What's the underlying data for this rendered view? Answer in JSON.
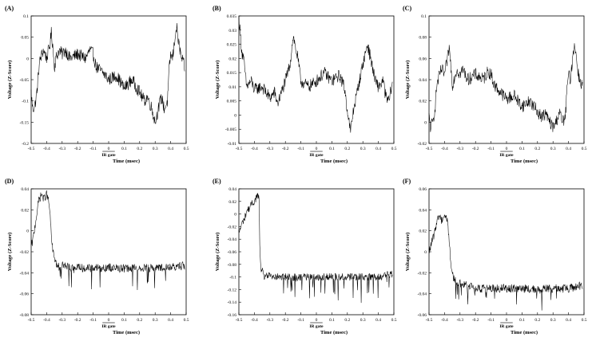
{
  "chart_data": [
    {
      "type": "line",
      "panel_label": "(A)",
      "xlabel": "Time (msec)",
      "ylabel": "Voltage (Z-Score)",
      "gate_label": "IR gate",
      "xlim": [
        -0.5,
        0.5
      ],
      "ylim": [
        -0.2,
        0.1
      ],
      "xticks": [
        "-0.5",
        "-0.4",
        "-0.3",
        "-0.2",
        "-0.1",
        "0",
        "0.1",
        "0.2",
        "0.3",
        "0.4",
        "0.5"
      ],
      "yticks": [
        "0.1",
        "0.05",
        "0",
        "-0.05",
        "-0.1",
        "-0.15",
        "-0.2"
      ],
      "series": [
        {
          "noise": 0.015,
          "x": [
            -0.5,
            -0.49,
            -0.475,
            -0.46,
            -0.45,
            -0.44,
            -0.42,
            -0.4,
            -0.38,
            -0.37,
            -0.36,
            -0.35,
            -0.34,
            -0.32,
            -0.3,
            -0.28,
            -0.25,
            -0.2,
            -0.15,
            -0.12,
            -0.1,
            -0.08,
            -0.05,
            -0.02,
            0.0,
            0.05,
            0.1,
            0.15,
            0.2,
            0.23,
            0.25,
            0.28,
            0.3,
            0.32,
            0.34,
            0.36,
            0.38,
            0.39,
            0.4,
            0.41,
            0.42,
            0.43,
            0.44,
            0.45,
            0.47,
            0.49
          ],
          "y": [
            -0.08,
            -0.12,
            -0.11,
            -0.07,
            -0.02,
            0.0,
            0.02,
            0.0,
            0.03,
            0.06,
            0.03,
            -0.02,
            0.0,
            0.02,
            0.01,
            0.02,
            0.0,
            0.01,
            0.0,
            0.02,
            0.01,
            -0.02,
            -0.03,
            -0.04,
            -0.05,
            -0.04,
            -0.07,
            -0.05,
            -0.08,
            -0.1,
            -0.09,
            -0.12,
            -0.15,
            -0.12,
            -0.09,
            -0.12,
            -0.1,
            -0.03,
            0.01,
            0.0,
            0.02,
            0.06,
            0.07,
            0.04,
            0.0,
            -0.02
          ]
        }
      ]
    },
    {
      "type": "line",
      "panel_label": "(B)",
      "xlabel": "Time (msec)",
      "ylabel": "Voltage (Z-Score)",
      "gate_label": "IR gate",
      "xlim": [
        -0.5,
        0.5
      ],
      "ylim": [
        -0.01,
        0.035
      ],
      "xticks": [
        "-0.5",
        "-0.4",
        "-0.3",
        "-0.2",
        "-0.1",
        "0",
        "0.1",
        "0.2",
        "0.3",
        "0.4",
        "0.5"
      ],
      "yticks": [
        "0.035",
        "0.03",
        "0.025",
        "0.02",
        "0.015",
        "0.01",
        "0.005",
        "0",
        "-0.005",
        "-0.01"
      ],
      "series": [
        {
          "noise": 0.0022,
          "x": [
            -0.5,
            -0.49,
            -0.48,
            -0.47,
            -0.45,
            -0.42,
            -0.4,
            -0.35,
            -0.3,
            -0.27,
            -0.25,
            -0.2,
            -0.17,
            -0.15,
            -0.12,
            -0.1,
            -0.05,
            0.0,
            0.05,
            0.1,
            0.15,
            0.18,
            0.2,
            0.22,
            0.24,
            0.27,
            0.3,
            0.33,
            0.35,
            0.38,
            0.4,
            0.43,
            0.45,
            0.47,
            0.49
          ],
          "y": [
            0.035,
            0.028,
            0.022,
            0.02,
            0.01,
            0.012,
            0.009,
            0.01,
            0.006,
            0.008,
            0.004,
            0.012,
            0.018,
            0.028,
            0.02,
            0.012,
            0.01,
            0.012,
            0.015,
            0.012,
            0.014,
            0.01,
            0.002,
            -0.006,
            0.002,
            0.01,
            0.018,
            0.025,
            0.02,
            0.012,
            0.01,
            0.012,
            0.006,
            0.005,
            0.012
          ]
        }
      ]
    },
    {
      "type": "line",
      "panel_label": "(C)",
      "xlabel": "Time (msec)",
      "ylabel": "Voltage (Z-Score)",
      "gate_label": "IR gate",
      "xlim": [
        -0.5,
        0.5
      ],
      "ylim": [
        -0.02,
        0.1
      ],
      "xticks": [
        "-0.5",
        "-0.4",
        "-0.3",
        "-0.2",
        "-0.1",
        "0",
        "0.1",
        "0.2",
        "0.3",
        "0.4",
        "0.5"
      ],
      "yticks": [
        "0.1",
        "0.08",
        "0.06",
        "0.04",
        "0.02",
        "0",
        "-0.02"
      ],
      "series": [
        {
          "noise": 0.006,
          "x": [
            -0.5,
            -0.49,
            -0.475,
            -0.46,
            -0.45,
            -0.44,
            -0.42,
            -0.4,
            -0.38,
            -0.37,
            -0.36,
            -0.35,
            -0.34,
            -0.32,
            -0.3,
            -0.28,
            -0.25,
            -0.2,
            -0.15,
            -0.12,
            -0.1,
            -0.08,
            -0.05,
            -0.02,
            0.0,
            0.05,
            0.1,
            0.15,
            0.2,
            0.23,
            0.25,
            0.28,
            0.3,
            0.32,
            0.34,
            0.36,
            0.38,
            0.39,
            0.4,
            0.41,
            0.42,
            0.43,
            0.44,
            0.45,
            0.47,
            0.49
          ],
          "y": [
            0.005,
            -0.005,
            0.0,
            0.015,
            0.035,
            0.04,
            0.05,
            0.045,
            0.06,
            0.07,
            0.055,
            0.035,
            0.04,
            0.05,
            0.045,
            0.05,
            0.04,
            0.045,
            0.04,
            0.048,
            0.045,
            0.035,
            0.03,
            0.025,
            0.022,
            0.025,
            0.015,
            0.02,
            0.01,
            0.005,
            0.008,
            0.0,
            -0.005,
            0.0,
            0.01,
            0.0,
            0.005,
            0.03,
            0.045,
            0.04,
            0.05,
            0.065,
            0.075,
            0.06,
            0.04,
            0.035
          ]
        }
      ]
    },
    {
      "type": "line",
      "panel_label": "(D)",
      "xlabel": "Time (msec)",
      "ylabel": "Voltage (Z-Score)",
      "gate_label": "IR gate",
      "xlim": [
        -0.5,
        0.5
      ],
      "ylim": [
        -0.08,
        0.04
      ],
      "xticks": [
        "-0.5",
        "-0.4",
        "-0.3",
        "-0.2",
        "-0.1",
        "0",
        "0.1",
        "0.2",
        "0.3",
        "0.4",
        "0.5"
      ],
      "yticks": [
        "0.04",
        "0.02",
        "0",
        "-0.02",
        "-0.04",
        "-0.06",
        "-0.08"
      ],
      "series": [
        {
          "noise": 0.004,
          "spikes": -0.015,
          "x": [
            -0.5,
            -0.49,
            -0.48,
            -0.46,
            -0.45,
            -0.43,
            -0.42,
            -0.4,
            -0.39,
            -0.38,
            -0.37,
            -0.36,
            -0.35,
            -0.34,
            -0.33,
            -0.3,
            -0.25,
            -0.2,
            -0.1,
            0.0,
            0.1,
            0.2,
            0.3,
            0.4,
            0.49
          ],
          "y": [
            -0.015,
            -0.01,
            0.0,
            0.02,
            0.03,
            0.035,
            0.03,
            0.035,
            0.03,
            0.02,
            -0.005,
            -0.02,
            -0.025,
            -0.03,
            -0.035,
            -0.033,
            -0.035,
            -0.035,
            -0.036,
            -0.035,
            -0.036,
            -0.035,
            -0.036,
            -0.035,
            -0.033
          ]
        }
      ]
    },
    {
      "type": "line",
      "panel_label": "(E)",
      "xlabel": "Time (msec)",
      "ylabel": "Voltage (Z-Score)",
      "gate_label": "IR gate",
      "xlim": [
        -0.5,
        0.5
      ],
      "ylim": [
        -0.16,
        0.04
      ],
      "xticks": [
        "-0.5",
        "-0.4",
        "-0.3",
        "-0.2",
        "-0.1",
        "0",
        "0.1",
        "0.2",
        "0.3",
        "0.4",
        "0.5"
      ],
      "yticks": [
        "0.04",
        "0.02",
        "0",
        "-0.02",
        "-0.04",
        "-0.06",
        "-0.08",
        "-0.1",
        "-0.12",
        "-0.14",
        "-0.16"
      ],
      "series": [
        {
          "noise": 0.006,
          "spikes": -0.025,
          "x": [
            -0.5,
            -0.48,
            -0.46,
            -0.45,
            -0.43,
            -0.42,
            -0.4,
            -0.38,
            -0.37,
            -0.365,
            -0.36,
            -0.35,
            -0.34,
            -0.3,
            -0.25,
            -0.2,
            -0.1,
            0.0,
            0.1,
            0.2,
            0.3,
            0.4,
            0.49
          ],
          "y": [
            -0.03,
            -0.015,
            -0.005,
            0.005,
            0.01,
            0.015,
            0.02,
            0.03,
            0.025,
            -0.05,
            -0.085,
            -0.09,
            -0.1,
            -0.098,
            -0.1,
            -0.1,
            -0.1,
            -0.1,
            -0.1,
            -0.1,
            -0.1,
            -0.1,
            -0.095
          ]
        }
      ]
    },
    {
      "type": "line",
      "panel_label": "(F)",
      "xlabel": "Time (msec)",
      "ylabel": "Voltage (Z-Score)",
      "gate_label": "IR gate",
      "xlim": [
        -0.5,
        0.5
      ],
      "ylim": [
        -0.06,
        0.06
      ],
      "xticks": [
        "-0.5",
        "-0.4",
        "-0.3",
        "-0.2",
        "-0.1",
        "0",
        "0.1",
        "0.2",
        "0.3",
        "0.4",
        "0.5"
      ],
      "yticks": [
        "0.06",
        "0.04",
        "0.02",
        "0",
        "-0.02",
        "-0.04",
        "-0.06"
      ],
      "series": [
        {
          "noise": 0.004,
          "spikes": -0.012,
          "x": [
            -0.5,
            -0.49,
            -0.48,
            -0.46,
            -0.45,
            -0.43,
            -0.42,
            -0.4,
            -0.38,
            -0.37,
            -0.36,
            -0.35,
            -0.34,
            -0.33,
            -0.3,
            -0.25,
            -0.2,
            -0.1,
            0.0,
            0.1,
            0.2,
            0.3,
            0.4,
            0.49
          ],
          "y": [
            0.0,
            0.005,
            0.01,
            0.02,
            0.03,
            0.035,
            0.03,
            0.035,
            0.03,
            0.01,
            -0.01,
            -0.02,
            -0.025,
            -0.028,
            -0.03,
            -0.032,
            -0.035,
            -0.035,
            -0.035,
            -0.035,
            -0.036,
            -0.035,
            -0.035,
            -0.032
          ]
        }
      ]
    }
  ]
}
